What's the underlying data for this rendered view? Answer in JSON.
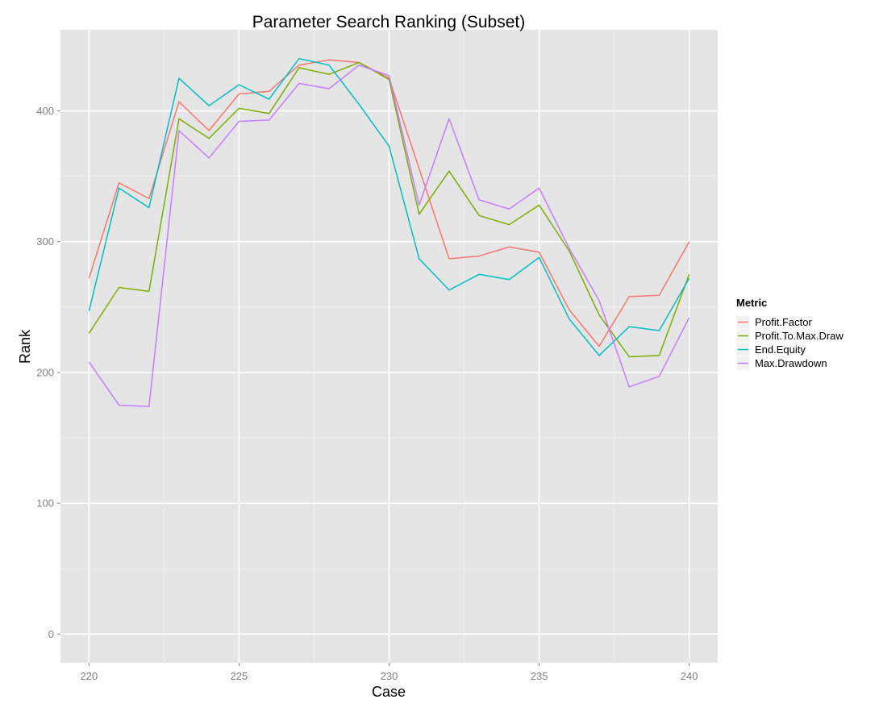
{
  "chart_data": {
    "type": "line",
    "title": "Parameter Search Ranking (Subset)",
    "xlabel": "Case",
    "ylabel": "Rank",
    "x": [
      220,
      221,
      222,
      223,
      224,
      225,
      226,
      227,
      228,
      229,
      230,
      231,
      232,
      233,
      234,
      235,
      236,
      237,
      238,
      239,
      240
    ],
    "xlim": [
      219.05,
      240.95
    ],
    "ylim": [
      -22,
      462
    ],
    "x_ticks": [
      220,
      225,
      230,
      235,
      240
    ],
    "y_ticks": [
      0,
      100,
      200,
      300,
      400
    ],
    "x_tick_labels": [
      "220",
      "225",
      "230",
      "235",
      "240"
    ],
    "y_tick_labels": [
      "0",
      "100",
      "200",
      "300",
      "400"
    ],
    "grid": true,
    "background": "#e5e5e5",
    "legend_title": "Metric",
    "legend_position": "right",
    "series": [
      {
        "name": "Profit.Factor",
        "color": "#f8766d",
        "values": [
          272,
          345,
          333,
          407,
          385,
          413,
          415,
          435,
          439,
          437,
          425,
          356,
          287,
          289,
          296,
          292,
          248,
          220,
          258,
          259,
          300
        ]
      },
      {
        "name": "Profit.To.Max.Draw",
        "color": "#7cae00",
        "values": [
          230,
          265,
          262,
          394,
          379,
          402,
          398,
          433,
          428,
          437,
          424,
          321,
          354,
          320,
          313,
          328,
          293,
          244,
          212,
          213,
          275
        ]
      },
      {
        "name": "End.Equity",
        "color": "#00bfc4",
        "values": [
          247,
          341,
          326,
          425,
          404,
          420,
          409,
          440,
          435,
          405,
          373,
          287,
          263,
          275,
          271,
          288,
          241,
          213,
          235,
          232,
          272
        ]
      },
      {
        "name": "Max.Drawdown",
        "color": "#c77cff",
        "values": [
          208,
          175,
          174,
          385,
          364,
          392,
          393,
          421,
          417,
          435,
          427,
          328,
          394,
          332,
          325,
          341,
          295,
          255,
          189,
          197,
          242
        ]
      }
    ]
  }
}
